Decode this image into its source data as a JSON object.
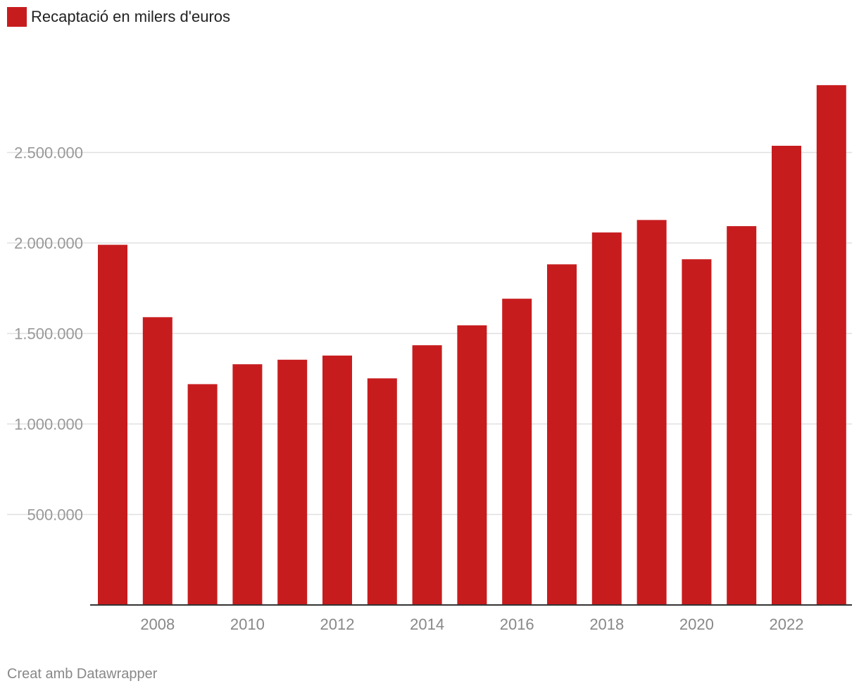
{
  "legend": {
    "label": "Recaptació en milers d'euros",
    "color": "#c71c1e"
  },
  "footer": {
    "credit": "Creat amb Datawrapper"
  },
  "chart_data": {
    "type": "bar",
    "categories": [
      "2007",
      "2008",
      "2009",
      "2010",
      "2011",
      "2012",
      "2013",
      "2014",
      "2015",
      "2016",
      "2017",
      "2018",
      "2019",
      "2020",
      "2021",
      "2022",
      "2023"
    ],
    "values": [
      1990000,
      1590000,
      1220000,
      1330000,
      1355000,
      1378000,
      1252000,
      1435000,
      1545000,
      1692000,
      1882000,
      2058000,
      2127000,
      1910000,
      2093000,
      2537000,
      2872000
    ],
    "series": [
      {
        "name": "Recaptació en milers d'euros",
        "color": "#c71c1e"
      }
    ],
    "x_tick_labels": [
      "2008",
      "2010",
      "2012",
      "2014",
      "2016",
      "2018",
      "2020",
      "2022"
    ],
    "y_ticks": [
      500000,
      1000000,
      1500000,
      2000000,
      2500000
    ],
    "y_tick_labels": [
      "500.000",
      "1.000.000",
      "1.500.000",
      "2.000.000",
      "2.500.000"
    ],
    "ylim": [
      0,
      3000000
    ],
    "grid": true,
    "legend_position": "top-left",
    "title": "",
    "xlabel": "",
    "ylabel": ""
  }
}
